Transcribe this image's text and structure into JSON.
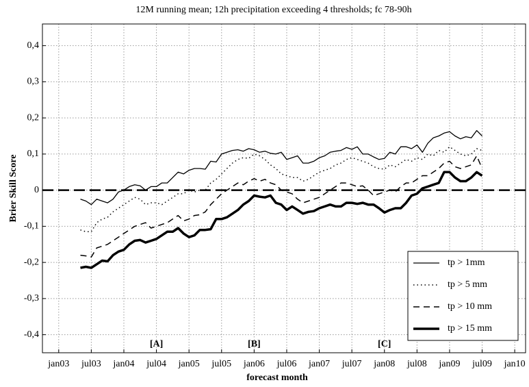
{
  "chart_data": {
    "type": "line",
    "title": "12M running mean; 12h precipitation exceeding 4 thresholds; fc 78-90h",
    "x_label": "forecast month",
    "y_label": "Brier Skill Score",
    "x": [
      "2003-05",
      "2003-06",
      "2003-07",
      "2003-08",
      "2003-09",
      "2003-10",
      "2003-11",
      "2003-12",
      "2004-01",
      "2004-02",
      "2004-03",
      "2004-04",
      "2004-05",
      "2004-06",
      "2004-07",
      "2004-08",
      "2004-09",
      "2004-10",
      "2004-11",
      "2004-12",
      "2005-01",
      "2005-02",
      "2005-03",
      "2005-04",
      "2005-05",
      "2005-06",
      "2005-07",
      "2005-08",
      "2005-09",
      "2005-10",
      "2005-11",
      "2005-12",
      "2006-01",
      "2006-02",
      "2006-03",
      "2006-04",
      "2006-05",
      "2006-06",
      "2006-07",
      "2006-08",
      "2006-09",
      "2006-10",
      "2006-11",
      "2006-12",
      "2007-01",
      "2007-02",
      "2007-03",
      "2007-04",
      "2007-05",
      "2007-06",
      "2007-07",
      "2007-08",
      "2007-09",
      "2007-10",
      "2007-11",
      "2007-12",
      "2008-01",
      "2008-02",
      "2008-03",
      "2008-04",
      "2008-05",
      "2008-06",
      "2008-07",
      "2008-08",
      "2008-09",
      "2008-10",
      "2008-11",
      "2008-12",
      "2009-01",
      "2009-02",
      "2009-03",
      "2009-04",
      "2009-05",
      "2009-06",
      "2009-07"
    ],
    "series": [
      {
        "name": "tp > 1mm",
        "color": "#000000",
        "width": 1.3,
        "dash": "solid",
        "values": [
          -0.025,
          -0.03,
          -0.04,
          -0.025,
          -0.03,
          -0.035,
          -0.025,
          -0.005,
          0,
          0.01,
          0.015,
          0.012,
          0,
          0.01,
          0.01,
          0.02,
          0.02,
          0.035,
          0.05,
          0.045,
          0.055,
          0.06,
          0.06,
          0.058,
          0.08,
          0.078,
          0.1,
          0.105,
          0.11,
          0.112,
          0.108,
          0.115,
          0.112,
          0.105,
          0.108,
          0.102,
          0.1,
          0.105,
          0.085,
          0.09,
          0.095,
          0.075,
          0.075,
          0.08,
          0.09,
          0.095,
          0.105,
          0.108,
          0.11,
          0.118,
          0.113,
          0.12,
          0.1,
          0.1,
          0.092,
          0.085,
          0.088,
          0.105,
          0.1,
          0.12,
          0.12,
          0.115,
          0.125,
          0.105,
          0.13,
          0.145,
          0.15,
          0.158,
          0.162,
          0.15,
          0.142,
          0.148,
          0.145,
          0.165,
          0.15
        ]
      },
      {
        "name": "tp > 5 mm",
        "color": "#000000",
        "width": 1.5,
        "dash": "dotted",
        "values": [
          -0.11,
          -0.115,
          -0.115,
          -0.09,
          -0.08,
          -0.075,
          -0.06,
          -0.05,
          -0.04,
          -0.03,
          -0.02,
          -0.025,
          -0.04,
          -0.035,
          -0.035,
          -0.04,
          -0.03,
          -0.02,
          -0.01,
          -0.01,
          0,
          -0.005,
          0,
          0,
          0.02,
          0.03,
          0.045,
          0.06,
          0.075,
          0.085,
          0.09,
          0.088,
          0.1,
          0.095,
          0.085,
          0.07,
          0.06,
          0.045,
          0.04,
          0.035,
          0.035,
          0.025,
          0.03,
          0.04,
          0.05,
          0.055,
          0.06,
          0.07,
          0.075,
          0.085,
          0.09,
          0.085,
          0.08,
          0.075,
          0.065,
          0.06,
          0.058,
          0.07,
          0.065,
          0.075,
          0.085,
          0.08,
          0.09,
          0.085,
          0.1,
          0.095,
          0.11,
          0.105,
          0.12,
          0.11,
          0.1,
          0.095,
          0.1,
          0.115,
          0.11
        ]
      },
      {
        "name": "tp > 10 mm",
        "color": "#000000",
        "width": 1.5,
        "dash": "dashed",
        "values": [
          -0.18,
          -0.182,
          -0.185,
          -0.16,
          -0.155,
          -0.15,
          -0.14,
          -0.13,
          -0.12,
          -0.11,
          -0.1,
          -0.095,
          -0.09,
          -0.105,
          -0.1,
          -0.095,
          -0.09,
          -0.08,
          -0.07,
          -0.085,
          -0.08,
          -0.07,
          -0.068,
          -0.06,
          -0.04,
          -0.025,
          -0.01,
          0,
          0.01,
          0.02,
          0.015,
          0.025,
          0.032,
          0.025,
          0.03,
          0.02,
          0.015,
          0,
          -0.005,
          -0.01,
          -0.025,
          -0.035,
          -0.03,
          -0.025,
          -0.02,
          -0.01,
          0,
          0.01,
          0.02,
          0.02,
          0.015,
          0.01,
          0.012,
          0,
          -0.015,
          -0.01,
          -0.005,
          0,
          -0.005,
          0.01,
          0.02,
          0.02,
          0.03,
          0.04,
          0.04,
          0.05,
          0.06,
          0.075,
          0.08,
          0.065,
          0.06,
          0.065,
          0.07,
          0.095,
          0.06
        ]
      },
      {
        "name": "tp > 15 mm",
        "color": "#000000",
        "width": 3.5,
        "dash": "solid",
        "values": [
          -0.215,
          -0.212,
          -0.215,
          -0.205,
          -0.195,
          -0.197,
          -0.18,
          -0.17,
          -0.165,
          -0.15,
          -0.14,
          -0.138,
          -0.145,
          -0.14,
          -0.135,
          -0.125,
          -0.115,
          -0.115,
          -0.105,
          -0.12,
          -0.13,
          -0.125,
          -0.11,
          -0.11,
          -0.108,
          -0.08,
          -0.08,
          -0.075,
          -0.065,
          -0.055,
          -0.04,
          -0.03,
          -0.015,
          -0.018,
          -0.02,
          -0.015,
          -0.035,
          -0.04,
          -0.055,
          -0.045,
          -0.055,
          -0.065,
          -0.06,
          -0.058,
          -0.05,
          -0.045,
          -0.04,
          -0.045,
          -0.045,
          -0.035,
          -0.035,
          -0.038,
          -0.035,
          -0.04,
          -0.04,
          -0.05,
          -0.062,
          -0.055,
          -0.05,
          -0.05,
          -0.035,
          -0.015,
          -0.01,
          0.005,
          0.01,
          0.015,
          0.02,
          0.05,
          0.05,
          0.035,
          0.025,
          0.025,
          0.035,
          0.05,
          0.04
        ]
      }
    ],
    "xlim": [
      "2002-10",
      "2010-03"
    ],
    "xticks": [
      {
        "value": "2003-01",
        "label": "jan03"
      },
      {
        "value": "2003-07",
        "label": "jul03"
      },
      {
        "value": "2004-01",
        "label": "jan04"
      },
      {
        "value": "2004-07",
        "label": "jul04"
      },
      {
        "value": "2005-01",
        "label": "jan05"
      },
      {
        "value": "2005-07",
        "label": "jul05"
      },
      {
        "value": "2006-01",
        "label": "jan06"
      },
      {
        "value": "2006-07",
        "label": "jul06"
      },
      {
        "value": "2007-01",
        "label": "jan07"
      },
      {
        "value": "2007-07",
        "label": "jul07"
      },
      {
        "value": "2008-01",
        "label": "jan08"
      },
      {
        "value": "2008-07",
        "label": "jul08"
      },
      {
        "value": "2009-01",
        "label": "jan09"
      },
      {
        "value": "2009-07",
        "label": "jul09"
      },
      {
        "value": "2010-01",
        "label": "jan10"
      }
    ],
    "ylim": [
      -0.45,
      0.46
    ],
    "yticks": [
      {
        "value": -0.4,
        "label": "-0,4"
      },
      {
        "value": -0.3,
        "label": "-0,3"
      },
      {
        "value": -0.2,
        "label": "-0,2"
      },
      {
        "value": -0.1,
        "label": "-0,1"
      },
      0,
      {
        "value": 0.1,
        "label": "0,1"
      },
      {
        "value": 0.2,
        "label": "0,2"
      },
      {
        "value": 0.3,
        "label": "0,3"
      },
      {
        "value": 0.4,
        "label": "0,4"
      }
    ],
    "hline": 0,
    "grid": true,
    "legend": "lower right",
    "annotations": [
      {
        "text": "[A]",
        "x": "2004-07"
      },
      {
        "text": "[B]",
        "x": "2006-01"
      },
      {
        "text": "[C]",
        "x": "2008-01"
      }
    ]
  }
}
